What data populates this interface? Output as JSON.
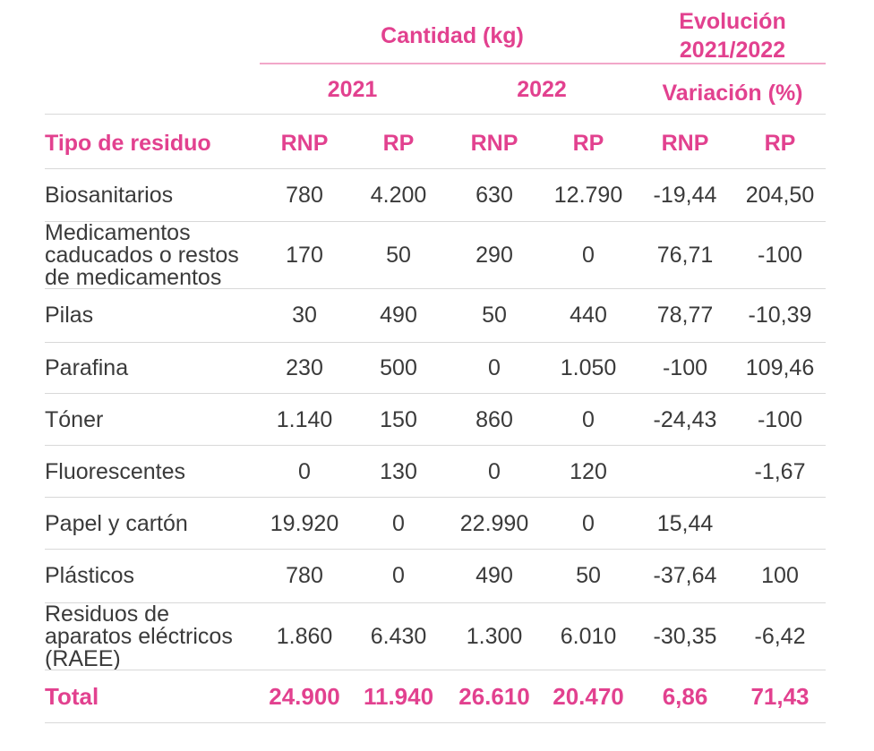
{
  "header": {
    "cantidad": "Cantidad (kg)",
    "evolucion_line1": "Evolución",
    "evolucion_line2": "2021/2022",
    "year_2021": "2021",
    "year_2022": "2022",
    "variacion": "Variación (%)"
  },
  "columns": {
    "tipo": "Tipo de residuo",
    "c1": "RNP",
    "c2": "RP",
    "c3": "RNP",
    "c4": "RP",
    "c5": "RNP",
    "c6": "RP"
  },
  "rows": [
    {
      "label": "Biosanitarios",
      "v": [
        "780",
        "4.200",
        "630",
        "12.790",
        "-19,44",
        "204,50"
      ]
    },
    {
      "label": "Medicamentos caducados o restos de medicamentos",
      "v": [
        "170",
        "50",
        "290",
        "0",
        "76,71",
        "-100"
      ]
    },
    {
      "label": "Pilas",
      "v": [
        "30",
        "490",
        "50",
        "440",
        "78,77",
        "-10,39"
      ]
    },
    {
      "label": "Parafina",
      "v": [
        "230",
        "500",
        "0",
        "1.050",
        "-100",
        "109,46"
      ]
    },
    {
      "label": "Tóner",
      "v": [
        "1.140",
        "150",
        "860",
        "0",
        "-24,43",
        "-100"
      ]
    },
    {
      "label": "Fluorescentes",
      "v": [
        "0",
        "130",
        "0",
        "120",
        "",
        "-1,67"
      ]
    },
    {
      "label": "Papel y cartón",
      "v": [
        "19.920",
        "0",
        "22.990",
        "0",
        "15,44",
        ""
      ]
    },
    {
      "label": "Plásticos",
      "v": [
        "780",
        "0",
        "490",
        "50",
        "-37,64",
        "100"
      ]
    },
    {
      "label": "Residuos de aparatos eléctricos (RAEE)",
      "v": [
        "1.860",
        "6.430",
        "1.300",
        "6.010",
        "-30,35",
        "-6,42"
      ]
    }
  ],
  "total": {
    "label": "Total",
    "v": [
      "24.900",
      "11.940",
      "26.610",
      "20.470",
      "6,86",
      "71,43"
    ]
  }
}
